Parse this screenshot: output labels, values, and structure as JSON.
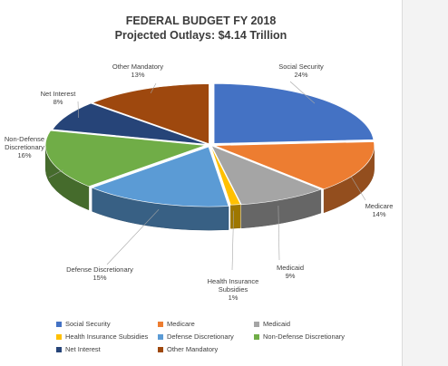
{
  "chart_data": {
    "type": "pie",
    "title": "FEDERAL BUDGET FY 2018",
    "subtitle": "Projected Outlays: $4.14 Trillion",
    "style": "3d-exploded",
    "legend_position": "bottom",
    "slices": [
      {
        "name": "Social Security",
        "value": 24,
        "label": "24%",
        "color": "#4472c4"
      },
      {
        "name": "Medicare",
        "value": 14,
        "label": "14%",
        "color": "#ed7d31"
      },
      {
        "name": "Medicaid",
        "value": 9,
        "label": "9%",
        "color": "#a5a5a5"
      },
      {
        "name": "Health Insurance Subsidies",
        "value": 1,
        "label": "1%",
        "color": "#ffc000"
      },
      {
        "name": "Defense Discretionary",
        "value": 15,
        "label": "15%",
        "color": "#5b9bd5"
      },
      {
        "name": "Non-Defense Discretionary",
        "value": 16,
        "label": "16%",
        "color": "#70ad47"
      },
      {
        "name": "Net Interest",
        "value": 8,
        "label": "8%",
        "color": "#264478"
      },
      {
        "name": "Other Mandatory",
        "value": 13,
        "label": "13%",
        "color": "#9e480e"
      }
    ]
  }
}
